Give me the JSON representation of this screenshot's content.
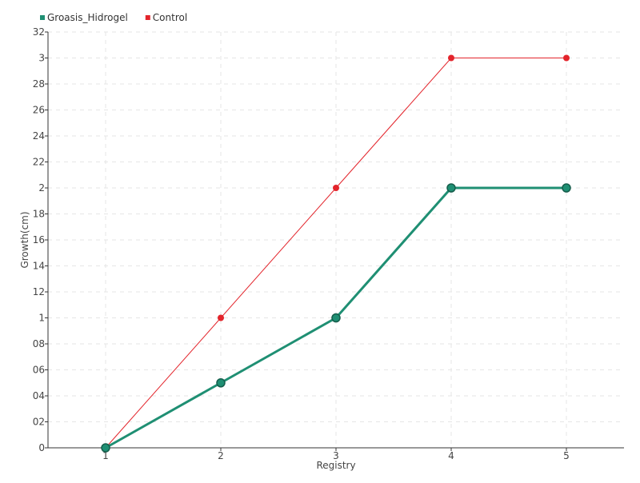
{
  "chart_data": {
    "type": "line",
    "title": "",
    "xlabel": "Registry",
    "ylabel": "Growth(cm)",
    "categories": [
      "1",
      "2",
      "3",
      "4",
      "5"
    ],
    "ylim": [
      0,
      3.2
    ],
    "y_ticks": [
      "0",
      "0.2",
      "0.4",
      "0.6",
      "0.8",
      "1",
      "1.2",
      "1.4",
      "1.6",
      "1.8",
      "2",
      "2.2",
      "2.4",
      "2.6",
      "2.8",
      "3",
      "3.2"
    ],
    "y_tick_labels": [
      "0",
      "02",
      "04",
      "06",
      "08",
      "1",
      "12",
      "14",
      "16",
      "18",
      "2",
      "22",
      "24",
      "26",
      "28",
      "3",
      "32"
    ],
    "grid": true,
    "legend_position": "top-left",
    "series": [
      {
        "name": "Groasis_Hidrogel",
        "values": [
          0,
          0.5,
          1,
          2,
          2
        ],
        "color": "#1f8f73",
        "style": "thick"
      },
      {
        "name": "Control",
        "values": [
          0,
          1,
          2,
          3,
          3
        ],
        "color": "#e3242b",
        "style": "thin"
      }
    ]
  }
}
